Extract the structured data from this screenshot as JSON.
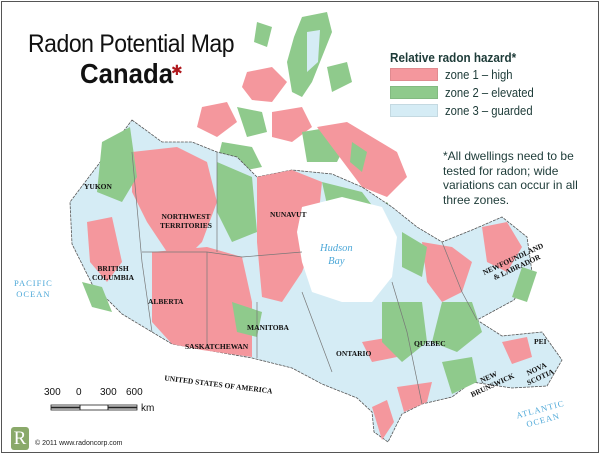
{
  "title": "Radon Potential Map",
  "subtitle": "Canada",
  "maple_leaf_icon": "maple-leaf",
  "legend": {
    "title": "Relative radon hazard*",
    "items": [
      {
        "label": "zone 1 – high",
        "color": "#f4979d"
      },
      {
        "label": "zone 2 – elevated",
        "color": "#8fca8c"
      },
      {
        "label": "zone 3 – guarded",
        "color": "#d5ecf5"
      }
    ]
  },
  "note": "*All dwellings need to be tested for radon; wide variations can occur in all three zones.",
  "regions": {
    "yukon": "YUKON",
    "nwt": "NORTHWEST\nTERRITORIES",
    "nunavut": "NUNAVUT",
    "bc": "BRITISH\nCOLUMBIA",
    "alberta": "ALBERTA",
    "saskatchewan": "SASKATCHEWAN",
    "manitoba": "MANITOBA",
    "ontario": "ONTARIO",
    "quebec": "QUEBEC",
    "nl": "NEWFOUNDLAND\n& LABRADOR",
    "pei": "PEI",
    "nb": "NEW\nBRUNSWICK",
    "ns": "NOVA\nSCOTIA",
    "usa": "UNITED STATES OF AMERICA"
  },
  "water": {
    "pacific": "PACIFIC\nOCEAN",
    "atlantic": "ATLANTIC\nOCEAN",
    "hudson": "Hudson\nBay"
  },
  "scale": {
    "ticks": [
      "300",
      "0",
      "300",
      "600"
    ],
    "unit": "km"
  },
  "logo_letter": "R",
  "copyright": "© 2011 www.radoncorp.com"
}
